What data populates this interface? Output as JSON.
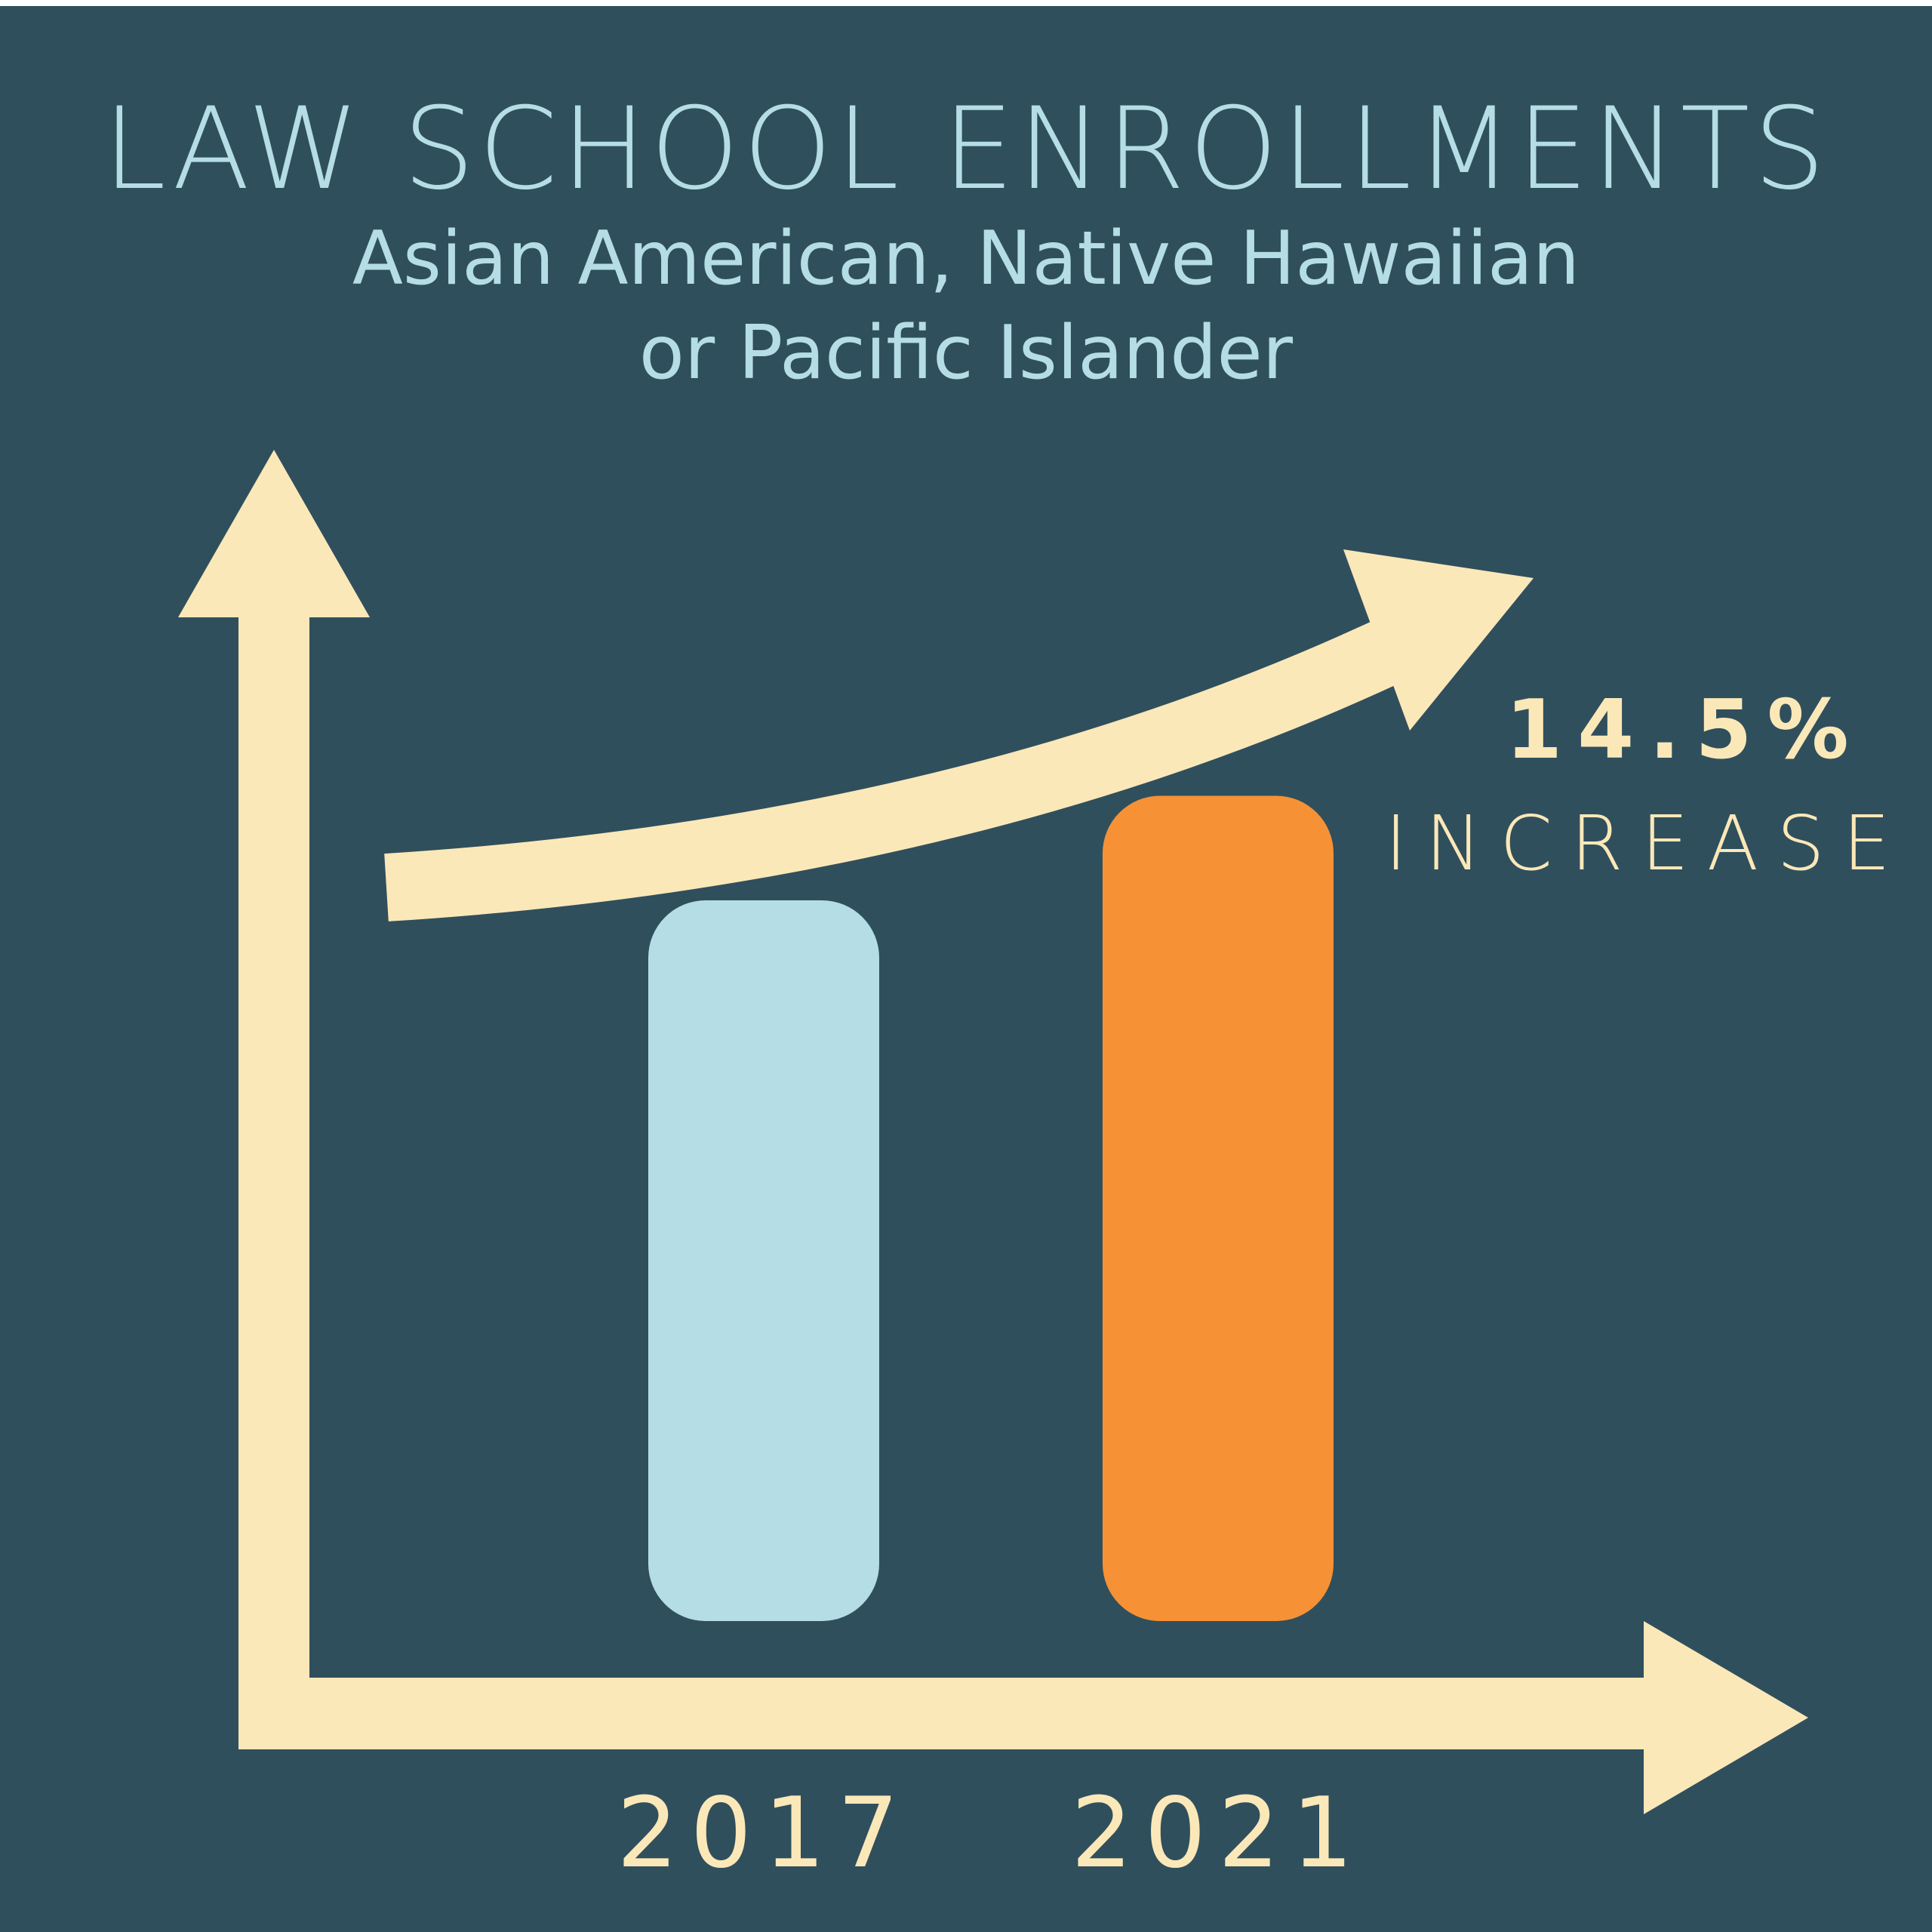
{
  "title": "LAW SCHOOL ENROLLMENTS",
  "subtitle_line1": "Asian American, Native Hawaiian",
  "subtitle_line2": "or Pacific Islander",
  "callout": {
    "value": "14.5%",
    "label": "INCREASE"
  },
  "colors": {
    "background": "#304f5d",
    "axis": "#fbe8b8",
    "title": "#b5dde5",
    "bar_2017": "#b5dde5",
    "bar_2021": "#f69235"
  },
  "chart_data": {
    "type": "bar",
    "title": "LAW SCHOOL ENROLLMENTS",
    "subtitle": "Asian American, Native Hawaiian or Pacific Islander",
    "categories": [
      "2017",
      "2021"
    ],
    "values": [
      100,
      114.5
    ],
    "units": "relative enrollment (2017 = 100)",
    "annotation": "14.5% INCREASE",
    "grid": false,
    "legend": "none"
  }
}
